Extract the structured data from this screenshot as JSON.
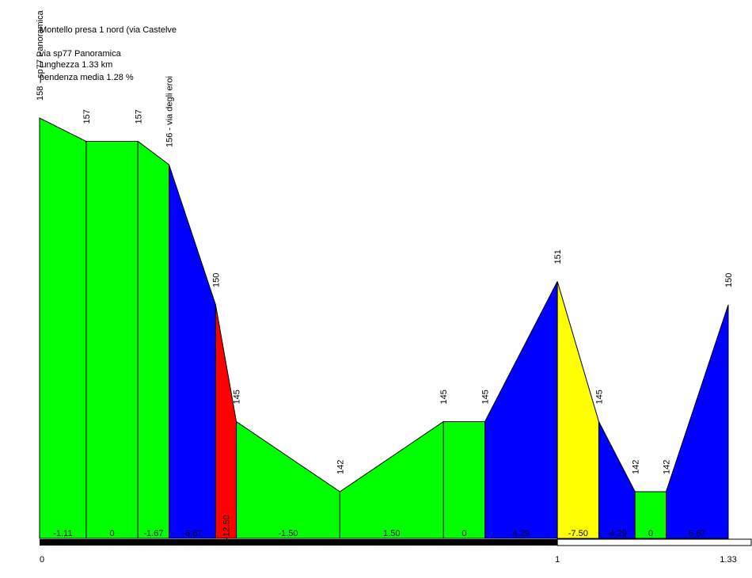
{
  "info": {
    "title": "Montello presa 1 nord (via Castelve",
    "line1": "via sp77 Panoramica",
    "line2": "lunghezza 1.33 km",
    "line3": "pendenza media 1.28 %"
  },
  "colors": {
    "green": "#00ff00",
    "blue": "#0000ff",
    "red": "#ff0000",
    "yellow": "#ffff00",
    "bar": "#000000"
  },
  "chart_data": {
    "type": "area",
    "title": "Montello presa 1 nord (via Castelve",
    "xlabel": "",
    "ylabel": "",
    "xlim": [
      0,
      1.33
    ],
    "x_ticks": [
      "0",
      "1",
      "1.33"
    ],
    "points": [
      {
        "x": 0.0,
        "y": 158,
        "label": "158 - sp77 Panoramica"
      },
      {
        "x": 0.09,
        "y": 157,
        "label": "157"
      },
      {
        "x": 0.19,
        "y": 157,
        "label": "157"
      },
      {
        "x": 0.25,
        "y": 156,
        "label": "156 - via degli eroi"
      },
      {
        "x": 0.34,
        "y": 150,
        "label": "150"
      },
      {
        "x": 0.38,
        "y": 145,
        "label": "145"
      },
      {
        "x": 0.58,
        "y": 142,
        "label": "142"
      },
      {
        "x": 0.78,
        "y": 145,
        "label": "145"
      },
      {
        "x": 0.86,
        "y": 145,
        "label": "145"
      },
      {
        "x": 1.0,
        "y": 151,
        "label": "151"
      },
      {
        "x": 1.08,
        "y": 145,
        "label": "145"
      },
      {
        "x": 1.15,
        "y": 142,
        "label": "142"
      },
      {
        "x": 1.21,
        "y": 142,
        "label": "142"
      },
      {
        "x": 1.33,
        "y": 150,
        "label": "150"
      }
    ],
    "segments": [
      {
        "gradient": "-1.11",
        "color": "green"
      },
      {
        "gradient": "0",
        "color": "green"
      },
      {
        "gradient": "-1.67",
        "color": "green"
      },
      {
        "gradient": "-6.67",
        "color": "blue"
      },
      {
        "gradient": "-12.50",
        "color": "red"
      },
      {
        "gradient": "-1.50",
        "color": "green"
      },
      {
        "gradient": "1.50",
        "color": "green"
      },
      {
        "gradient": "0",
        "color": "green"
      },
      {
        "gradient": "4.29",
        "color": "blue"
      },
      {
        "gradient": "-7.50",
        "color": "yellow"
      },
      {
        "gradient": "-4.29",
        "color": "blue"
      },
      {
        "gradient": "0",
        "color": "green"
      },
      {
        "gradient": "6.67",
        "color": "blue"
      }
    ]
  }
}
